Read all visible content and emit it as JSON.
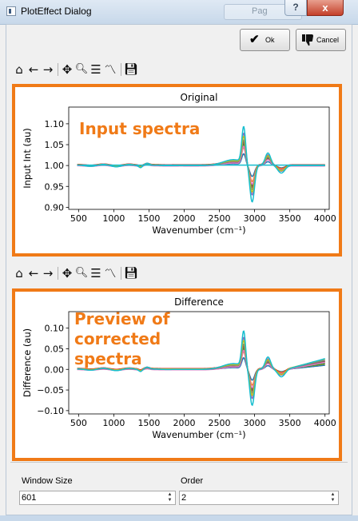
{
  "window": {
    "title": "PlotEffect Dialog",
    "help_glyph": "?",
    "close_glyph": "x",
    "background_tab_label": "Pag"
  },
  "dialog_buttons": {
    "ok": {
      "label": "Ok",
      "icon": "checkmark-icon"
    },
    "cancel": {
      "label": "Cancel",
      "icon": "thumbs-down-icon"
    }
  },
  "toolbar_icons": {
    "home": "⌂",
    "back": "←",
    "forward": "→",
    "pan": "✥",
    "zoom": "🔍︎",
    "configure": "☰",
    "edit_curves": "〽",
    "save": "💾︎"
  },
  "annotations": {
    "top": "Input spectra",
    "bottom_line1": "Preview of",
    "bottom_line2": "corrected",
    "bottom_line3": "spectra",
    "color": "#f07a17"
  },
  "chart_data": [
    {
      "type": "line",
      "title": "Original",
      "xlabel": "Wavenumber (cm⁻¹)",
      "ylabel": "Input Int (au)",
      "xlim": [
        360,
        4060
      ],
      "ylim": [
        0.895,
        1.14
      ],
      "xticks": [
        500,
        1000,
        1500,
        2000,
        2500,
        3000,
        3500,
        4000
      ],
      "yticks": [
        0.9,
        0.95,
        1.0,
        1.05,
        1.1
      ],
      "ytick_labels": [
        "0.90",
        "0.95",
        "1.00",
        "1.05",
        "1.10"
      ],
      "grid": false,
      "series": [
        {
          "color": "#1f77b4",
          "scale": 0.3,
          "offset": 0.0,
          "slope": 0.01
        },
        {
          "color": "#ff7f0e",
          "scale": 0.45,
          "offset": 0.001,
          "slope": 0.012
        },
        {
          "color": "#2ca02c",
          "scale": 0.55,
          "offset": 0.0,
          "slope": 0.014
        },
        {
          "color": "#d62728",
          "scale": 0.62,
          "offset": 0.002,
          "slope": 0.016
        },
        {
          "color": "#9467bd",
          "scale": 0.82,
          "offset": 0.001,
          "slope": 0.018
        },
        {
          "color": "#8c564b",
          "scale": 0.6,
          "offset": 0.0,
          "slope": 0.02
        },
        {
          "color": "#e377c2",
          "scale": 0.5,
          "offset": -0.001,
          "slope": 0.018
        },
        {
          "color": "#7f7f7f",
          "scale": 0.66,
          "offset": 0.0,
          "slope": 0.022
        },
        {
          "color": "#bcbd22",
          "scale": 0.74,
          "offset": 0.001,
          "slope": 0.024
        },
        {
          "color": "#17becf",
          "scale": 1.0,
          "offset": 0.0,
          "slope": 0.026
        },
        {
          "color": "#17becf",
          "scale": 0.0,
          "offset": 0.001,
          "slope": 0.0
        }
      ]
    },
    {
      "type": "line",
      "title": "Difference",
      "xlabel": "Wavenumber (cm⁻¹)",
      "ylabel": "Difference (au)",
      "xlim": [
        360,
        4060
      ],
      "ylim": [
        -0.108,
        0.14
      ],
      "xticks": [
        500,
        1000,
        1500,
        2000,
        2500,
        3000,
        3500,
        4000
      ],
      "yticks": [
        -0.1,
        -0.05,
        0.0,
        0.05,
        0.1
      ],
      "ytick_labels": [
        "−0.10",
        "−0.05",
        "0.00",
        "0.05",
        "0.10"
      ],
      "grid": false,
      "series": [
        {
          "color": "#1f77b4",
          "scale": 0.3,
          "offset": 0.0,
          "slope": 0.01
        },
        {
          "color": "#ff7f0e",
          "scale": 0.45,
          "offset": 0.001,
          "slope": 0.012
        },
        {
          "color": "#2ca02c",
          "scale": 0.55,
          "offset": 0.0,
          "slope": 0.014
        },
        {
          "color": "#d62728",
          "scale": 0.62,
          "offset": 0.002,
          "slope": 0.016
        },
        {
          "color": "#9467bd",
          "scale": 0.82,
          "offset": 0.001,
          "slope": 0.018
        },
        {
          "color": "#8c564b",
          "scale": 0.6,
          "offset": 0.0,
          "slope": 0.02
        },
        {
          "color": "#e377c2",
          "scale": 0.5,
          "offset": -0.001,
          "slope": 0.018
        },
        {
          "color": "#7f7f7f",
          "scale": 0.66,
          "offset": 0.0,
          "slope": 0.022
        },
        {
          "color": "#bcbd22",
          "scale": 0.74,
          "offset": 0.001,
          "slope": 0.024
        },
        {
          "color": "#17becf",
          "scale": 1.0,
          "offset": 0.0,
          "slope": 0.026
        }
      ]
    }
  ],
  "controls": {
    "window_size": {
      "label": "Window Size",
      "value": "601"
    },
    "order": {
      "label": "Order",
      "value": "2"
    }
  }
}
